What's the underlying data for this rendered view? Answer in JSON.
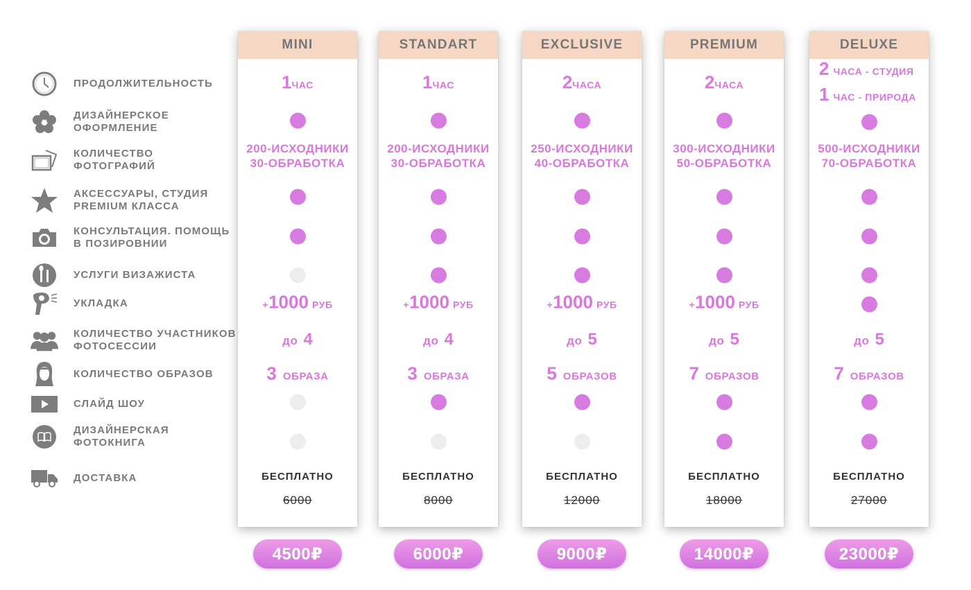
{
  "features": [
    {
      "label": "ПРОДОЛЖИТЕЛЬНОСТЬ",
      "icon": "clock-icon"
    },
    {
      "label": "ДИЗАЙНЕРСКОЕ\nОФОРМЛЕНИЕ",
      "icon": "flower-icon"
    },
    {
      "label": "КОЛИЧЕСТВО\nФОТОГРАФИЙ",
      "icon": "photos-icon"
    },
    {
      "label": "АКСЕССУАРЫ, СТУДИЯ\nPREMIUM КЛАССА",
      "icon": "star-icon"
    },
    {
      "label": "КОНСУЛЬТАЦИЯ. ПОМОЩЬ\nВ ПОЗИРОВНИИ",
      "icon": "camera-icon"
    },
    {
      "label": "УСЛУГИ ВИЗАЖИСТА",
      "icon": "makeup-brush-icon"
    },
    {
      "label": "УКЛАДКА",
      "icon": "hair-dryer-icon"
    },
    {
      "label": "КОЛИЧЕСТВО УЧАСТНИКОВ\nФОТОСЕССИИ",
      "icon": "group-icon"
    },
    {
      "label": "КОЛИЧЕСТВО ОБРАЗОВ",
      "icon": "woman-icon"
    },
    {
      "label": "СЛАЙД ШОУ",
      "icon": "play-icon"
    },
    {
      "label": "ДИЗАЙНЕРСКАЯ\nФОТОКНИГА",
      "icon": "book-icon"
    },
    {
      "label": "ДОСТАВКА",
      "icon": "truck-icon"
    }
  ],
  "colors": {
    "accent": "#d77be0",
    "header_bg": "#f6d7c3",
    "dot_off": "#ededed"
  },
  "plans": [
    {
      "name": "MINI",
      "duration": [
        {
          "num": "1",
          "unit": "ЧАС"
        }
      ],
      "design": true,
      "photos": {
        "src_num": "200",
        "src_label": "-ИСХОДНИКИ",
        "proc_num": "30",
        "proc_label": "-ОБРАБОТКА"
      },
      "accessories": true,
      "consult": true,
      "makeup": false,
      "styling": {
        "plus": "+",
        "amount": "1000",
        "unit": "РУБ"
      },
      "participants": {
        "prefix": "до",
        "num": "4"
      },
      "looks": {
        "num": "3",
        "unit": "ОБРАЗА"
      },
      "slideshow": false,
      "book": false,
      "delivery": "БЕСПЛАТНО",
      "old_price": "6000",
      "price": "4500₽"
    },
    {
      "name": "STANDART",
      "duration": [
        {
          "num": "1",
          "unit": "ЧАС"
        }
      ],
      "design": true,
      "photos": {
        "src_num": "200",
        "src_label": "-ИСХОДНИКИ",
        "proc_num": "30",
        "proc_label": "-ОБРАБОТКА"
      },
      "accessories": true,
      "consult": true,
      "makeup": true,
      "styling": {
        "plus": "+",
        "amount": "1000",
        "unit": "РУБ"
      },
      "participants": {
        "prefix": "до",
        "num": "4"
      },
      "looks": {
        "num": "3",
        "unit": "ОБРАЗА"
      },
      "slideshow": true,
      "book": false,
      "delivery": "БЕСПЛАТНО",
      "old_price": "8000",
      "price": "6000₽"
    },
    {
      "name": "EXCLUSIVE",
      "duration": [
        {
          "num": "2",
          "unit": "ЧАСА"
        }
      ],
      "design": true,
      "photos": {
        "src_num": "250",
        "src_label": "-ИСХОДНИКИ",
        "proc_num": "40",
        "proc_label": "-ОБРАБОТКА"
      },
      "accessories": true,
      "consult": true,
      "makeup": true,
      "styling": {
        "plus": "+",
        "amount": "1000",
        "unit": "РУБ"
      },
      "participants": {
        "prefix": "до",
        "num": "5"
      },
      "looks": {
        "num": "5",
        "unit": "ОБРАЗОВ"
      },
      "slideshow": true,
      "book": false,
      "delivery": "БЕСПЛАТНО",
      "old_price": "12000",
      "price": "9000₽"
    },
    {
      "name": "PREMIUM",
      "duration": [
        {
          "num": "2",
          "unit": "ЧАСА"
        }
      ],
      "design": true,
      "photos": {
        "src_num": "300",
        "src_label": "-ИСХОДНИКИ",
        "proc_num": "50",
        "proc_label": "-ОБРАБОТКА"
      },
      "accessories": true,
      "consult": true,
      "makeup": true,
      "styling": {
        "plus": "+",
        "amount": "1000",
        "unit": "РУБ"
      },
      "participants": {
        "prefix": "до",
        "num": "5"
      },
      "looks": {
        "num": "7",
        "unit": "ОБРАЗОВ"
      },
      "slideshow": true,
      "book": true,
      "delivery": "БЕСПЛАТНО",
      "old_price": "18000",
      "price": "14000₽"
    },
    {
      "name": "DELUXE",
      "duration": [
        {
          "num": "2",
          "unit": "ЧАСА - СТУДИЯ"
        },
        {
          "num": "1",
          "unit": "ЧАС - ПРИРОДА"
        }
      ],
      "design": true,
      "photos": {
        "src_num": "500",
        "src_label": "-ИСХОДНИКИ",
        "proc_num": "70",
        "proc_label": "-ОБРАБОТКА"
      },
      "accessories": true,
      "consult": true,
      "makeup": true,
      "styling": null,
      "styling_included": true,
      "participants": {
        "prefix": "до",
        "num": "5"
      },
      "looks": {
        "num": "7",
        "unit": "ОБРАЗОВ"
      },
      "slideshow": true,
      "book": true,
      "delivery": "БЕСПЛАТНО",
      "old_price": "27000",
      "price": "23000₽"
    }
  ]
}
